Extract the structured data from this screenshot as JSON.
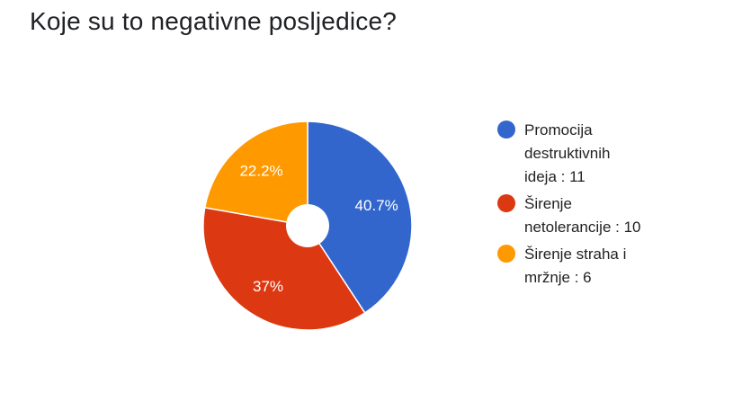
{
  "question": {
    "title": "Koje su to negativne posljedice?"
  },
  "chart_data": {
    "type": "pie",
    "style": "donut",
    "categories": [
      "Promocija destruktivnih ideja",
      "Širenje netolerancije",
      "Širenje straha i mržnje"
    ],
    "values": [
      11,
      10,
      6
    ],
    "percent_labels": [
      "40.7%",
      "37%",
      "22.2%"
    ],
    "legend_labels": [
      "Promocija\ndestruktivnih\nideja : 11",
      "Širenje\nnetolerancije : 10",
      "Širenje straha i\nmržnje : 6"
    ],
    "colors": [
      "#3366cc",
      "#dc3912",
      "#ff9900"
    ],
    "legend_position": "right"
  }
}
